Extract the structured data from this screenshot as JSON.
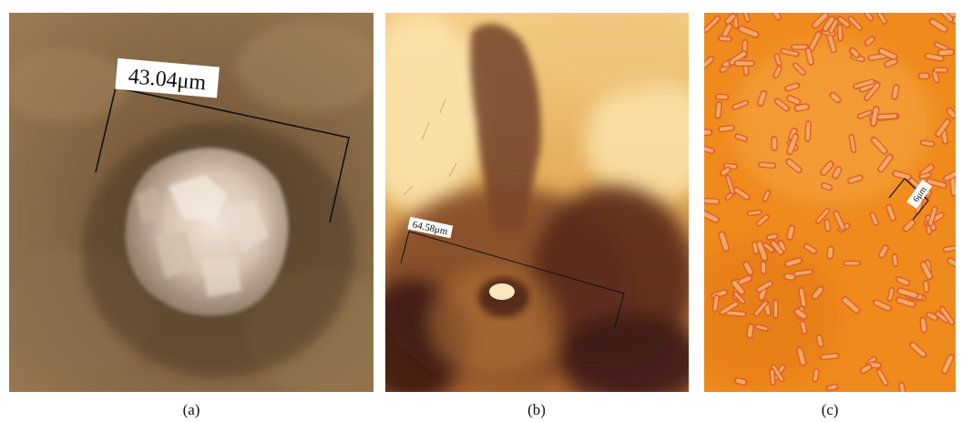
{
  "figure": {
    "panels": [
      {
        "id": "a",
        "caption": "(a)",
        "scale_label": "43.04μm",
        "colors": {
          "background": "#8c6a45",
          "crystal": "#e2d2c0",
          "scale_line": "#111111"
        }
      },
      {
        "id": "b",
        "caption": "(b)",
        "scale_label": "64.58μm",
        "colors": {
          "background": "#c88a3c",
          "dark_tissue": "#4a2015",
          "light": "#f7d998",
          "scale_line": "#111111"
        }
      },
      {
        "id": "c",
        "caption": "(c)",
        "scale_label": "6μm",
        "colors": {
          "background": "#f08a18",
          "rod": "#e2602a",
          "rod_highlight": "#f6c07a",
          "scale_line": "#111111"
        }
      }
    ]
  }
}
